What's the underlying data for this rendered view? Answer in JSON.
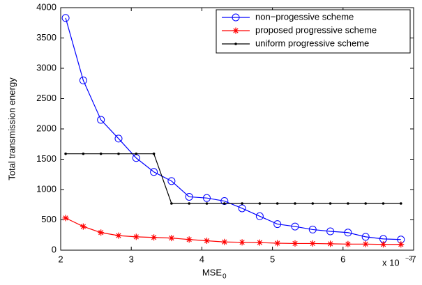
{
  "chart_data": {
    "type": "line",
    "ylabel": "Total transmission energy",
    "xlabel": "MSE",
    "xlabel_subscript": "0",
    "x_multiplier": "x 10",
    "x_multiplier_exponent": "−3",
    "x": [
      2.07,
      2.32,
      2.57,
      2.82,
      3.07,
      3.32,
      3.57,
      3.82,
      4.07,
      4.32,
      4.57,
      4.82,
      5.07,
      5.32,
      5.57,
      5.82,
      6.07,
      6.32,
      6.57,
      6.82
    ],
    "series": [
      {
        "name": "non−progessive scheme",
        "color": "#0000ff",
        "marker": "circle",
        "values": [
          3830,
          2800,
          2150,
          1840,
          1520,
          1290,
          1140,
          880,
          860,
          810,
          690,
          560,
          430,
          390,
          340,
          310,
          290,
          220,
          185,
          175
        ]
      },
      {
        "name": "proposed progressive scheme",
        "color": "#ff0000",
        "marker": "asterisk",
        "values": [
          530,
          390,
          290,
          240,
          220,
          210,
          200,
          175,
          155,
          135,
          130,
          125,
          115,
          110,
          110,
          105,
          100,
          100,
          95,
          95
        ]
      },
      {
        "name": "uniform progressive scheme",
        "color": "#000000",
        "marker": "dot",
        "values": [
          1590,
          1590,
          1590,
          1590,
          1590,
          1590,
          770,
          770,
          770,
          770,
          770,
          770,
          770,
          770,
          770,
          770,
          770,
          770,
          770,
          770
        ]
      }
    ],
    "xlim": [
      2,
      7
    ],
    "xticks": [
      2,
      3,
      4,
      5,
      6,
      7
    ],
    "ylim": [
      0,
      4000
    ],
    "yticks": [
      0,
      500,
      1000,
      1500,
      2000,
      2500,
      3000,
      3500,
      4000
    ],
    "grid": false,
    "legend": "top-right"
  }
}
